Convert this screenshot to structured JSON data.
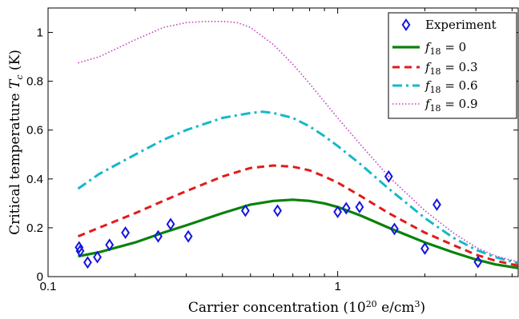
{
  "chart_data": {
    "type": "scatter",
    "title": "",
    "xlabel": "Carrier concentration (10",
    "xlabel_sup": "20",
    "xlabel_tail": " e/cm",
    "xlabel_sup2": "3",
    "xlabel_end": ")",
    "ylabel": "Critical temperature",
    "ylabel_sym": "T",
    "ylabel_sub": "c",
    "ylabel_unit": " (K)",
    "xscale": "log",
    "xlim": [
      0.1,
      4.2
    ],
    "ylim": [
      0,
      1.1
    ],
    "xticks": [
      {
        "value": 0.1,
        "label": "0.1"
      },
      {
        "value": 1,
        "label": "1"
      }
    ],
    "yticks": [
      {
        "value": 0,
        "label": "0"
      },
      {
        "value": 0.2,
        "label": "0.2"
      },
      {
        "value": 0.4,
        "label": "0.4"
      },
      {
        "value": 0.6,
        "label": "0.6"
      },
      {
        "value": 0.8,
        "label": "0.8"
      },
      {
        "value": 1,
        "label": "1"
      }
    ],
    "grid": false,
    "legend_position": "top-right",
    "experiment": {
      "name": "Experiment",
      "color": "#1515e0",
      "marker": "diamond",
      "x": [
        0.128,
        0.129,
        0.137,
        0.148,
        0.163,
        0.185,
        0.24,
        0.265,
        0.305,
        0.48,
        0.62,
        1.0,
        1.07,
        1.19,
        1.5,
        1.57,
        2.0,
        2.2,
        3.05
      ],
      "y": [
        0.12,
        0.105,
        0.058,
        0.08,
        0.13,
        0.18,
        0.165,
        0.215,
        0.165,
        0.27,
        0.27,
        0.265,
        0.28,
        0.285,
        0.41,
        0.195,
        0.115,
        0.295,
        0.06
      ]
    },
    "series": [
      {
        "label_sym": "f",
        "label_sub": "18",
        "label_val": " = 0",
        "color": "#0a820a",
        "dash": "",
        "width": 3.2,
        "x": [
          0.127,
          0.15,
          0.2,
          0.25,
          0.3,
          0.4,
          0.5,
          0.6,
          0.7,
          0.8,
          0.9,
          1.0,
          1.2,
          1.5,
          2.0,
          2.5,
          3.0,
          3.5,
          4.2
        ],
        "y": [
          0.083,
          0.1,
          0.14,
          0.18,
          0.21,
          0.26,
          0.295,
          0.31,
          0.315,
          0.31,
          0.3,
          0.285,
          0.25,
          0.2,
          0.14,
          0.1,
          0.07,
          0.05,
          0.035
        ]
      },
      {
        "label_sym": "f",
        "label_sub": "18",
        "label_val": " = 0.3",
        "color": "#e31a1a",
        "dash": "9,6",
        "width": 3,
        "x": [
          0.127,
          0.15,
          0.2,
          0.25,
          0.3,
          0.4,
          0.5,
          0.6,
          0.7,
          0.8,
          0.9,
          1.0,
          1.2,
          1.5,
          2.0,
          2.5,
          3.0,
          3.5,
          4.2
        ],
        "y": [
          0.165,
          0.2,
          0.26,
          0.31,
          0.35,
          0.41,
          0.445,
          0.455,
          0.45,
          0.435,
          0.41,
          0.385,
          0.33,
          0.26,
          0.18,
          0.13,
          0.09,
          0.065,
          0.045
        ]
      },
      {
        "label_sym": "f",
        "label_sub": "18",
        "label_val": " = 0.6",
        "color": "#14b9c8",
        "dash": "12,5,3,5",
        "width": 3,
        "x": [
          0.127,
          0.15,
          0.2,
          0.25,
          0.3,
          0.4,
          0.5,
          0.55,
          0.6,
          0.7,
          0.8,
          0.9,
          1.0,
          1.2,
          1.5,
          2.0,
          2.5,
          3.0,
          3.5,
          4.2
        ],
        "y": [
          0.36,
          0.42,
          0.5,
          0.56,
          0.6,
          0.65,
          0.67,
          0.675,
          0.67,
          0.65,
          0.615,
          0.575,
          0.535,
          0.46,
          0.36,
          0.24,
          0.16,
          0.11,
          0.08,
          0.055
        ]
      },
      {
        "label_sym": "f",
        "label_sub": "18",
        "label_val": " = 0.9",
        "color": "#c040c0",
        "dash": "1.5,2.5",
        "width": 1.6,
        "x": [
          0.127,
          0.15,
          0.2,
          0.25,
          0.3,
          0.35,
          0.4,
          0.45,
          0.5,
          0.6,
          0.7,
          0.8,
          1.0,
          1.2,
          1.5,
          2.0,
          2.5,
          3.0,
          3.5,
          4.2
        ],
        "y": [
          0.875,
          0.9,
          0.97,
          1.02,
          1.04,
          1.045,
          1.045,
          1.04,
          1.02,
          0.95,
          0.87,
          0.79,
          0.65,
          0.54,
          0.41,
          0.27,
          0.18,
          0.12,
          0.085,
          0.06
        ]
      }
    ]
  }
}
